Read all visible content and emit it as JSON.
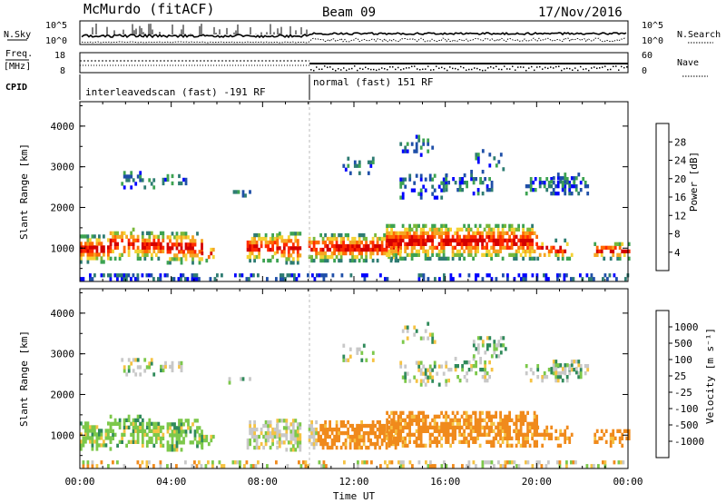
{
  "header": {
    "station": "McMurdo (fitACF)",
    "beam": "Beam 09",
    "date": "17/Nov/2016"
  },
  "top_panels": {
    "nsky_label": "N.Sky",
    "nsearch_label": "N.Search",
    "log_ticks": [
      "10^5",
      "10^0"
    ],
    "freq_label_1": "Freq.",
    "freq_label_2": "[MHz]",
    "freq_ticks": [
      "18",
      "8"
    ],
    "nave_label": "Nave",
    "nave_ticks": [
      "60",
      "0"
    ],
    "cpid_label": "CPID",
    "cpid_1": "interleavedscan (fast) -191 RF",
    "cpid_2": "normal (fast) 151 RF"
  },
  "chart_data": [
    {
      "type": "heatmap",
      "title": "",
      "xlabel": "Time UT",
      "ylabel": "Slant Range [km]",
      "x_ticks": [
        "00:00",
        "04:00",
        "08:00",
        "12:00",
        "16:00",
        "20:00",
        "00:00"
      ],
      "xlim_hours": [
        0,
        24
      ],
      "y_ticks": [
        1000,
        2000,
        3000,
        4000
      ],
      "ylim_km": [
        180,
        4600
      ],
      "colorbar": {
        "label": "Power [dB]",
        "ticks": [
          "28",
          "24",
          "20",
          "16",
          "12",
          "8",
          "4"
        ],
        "colors": [
          "#0000ff",
          "#1f4fa8",
          "#2e7c72",
          "#3da352",
          "#7ab83b",
          "#f5d233",
          "#f5a623",
          "#ff6a00",
          "#ff2a00",
          "#d40000"
        ]
      },
      "grid": false
    },
    {
      "type": "heatmap",
      "title": "",
      "xlabel": "Time UT",
      "ylabel": "Slant Range [km]",
      "x_ticks": [
        "00:00",
        "04:00",
        "08:00",
        "12:00",
        "16:00",
        "20:00",
        "00:00"
      ],
      "xlim_hours": [
        0,
        24
      ],
      "y_ticks": [
        1000,
        2000,
        3000,
        4000
      ],
      "ylim_km": [
        180,
        4600
      ],
      "colorbar": {
        "label": "Velocity [m s⁻¹]",
        "ticks": [
          "1000",
          "500",
          "100",
          "25",
          "-25",
          "-100",
          "-500",
          "-1000"
        ],
        "colors": [
          "#1f3fbf",
          "#2f6fae",
          "#2f8a5a",
          "#7cc84a",
          "#c8c8c8",
          "#f5c242",
          "#f08a1c",
          "#ff4a00",
          "#e00000"
        ]
      },
      "grid": false
    }
  ]
}
